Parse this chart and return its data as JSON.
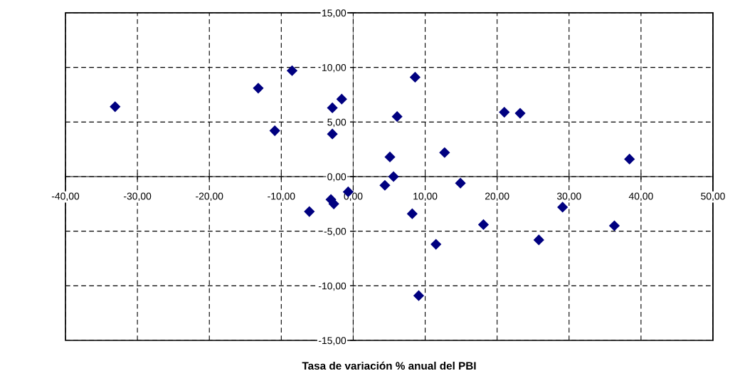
{
  "chart_data": {
    "type": "scatter",
    "xlabel": "Tasa de variación % anual del PBI",
    "x": [
      -33.1,
      -13.2,
      -8.5,
      -10.9,
      -2.9,
      -1.6,
      -2.9,
      6.1,
      8.6,
      5.1,
      5.6,
      4.4,
      -0.7,
      -6.1,
      -3.1,
      -2.7,
      12.7,
      14.9,
      8.2,
      11.5,
      9.1,
      18.1,
      21.0,
      23.2,
      25.8,
      29.1,
      36.3,
      38.4
    ],
    "series": [
      {
        "color": "#000080",
        "values": [
          6.4,
          8.1,
          9.7,
          4.2,
          6.3,
          7.1,
          3.9,
          5.5,
          9.1,
          1.8,
          0.0,
          -0.8,
          -1.4,
          -3.2,
          -2.1,
          -2.5,
          2.2,
          -0.6,
          -3.4,
          -6.2,
          -10.9,
          -4.4,
          5.9,
          5.8,
          -5.8,
          -2.8,
          -4.5,
          1.6
        ]
      }
    ],
    "xlim": [
      -40,
      50
    ],
    "ylim": [
      -15,
      15
    ],
    "xticks": [
      {
        "value": -40,
        "label": "-40,00"
      },
      {
        "value": -30,
        "label": "-30,00"
      },
      {
        "value": -20,
        "label": "-20,00"
      },
      {
        "value": -10,
        "label": "-10,00"
      },
      {
        "value": 0,
        "label": "0,00"
      },
      {
        "value": 10,
        "label": "10,00"
      },
      {
        "value": 20,
        "label": "20,00"
      },
      {
        "value": 30,
        "label": "30,00"
      },
      {
        "value": 40,
        "label": "40,00"
      },
      {
        "value": 50,
        "label": "50,00"
      }
    ],
    "yticks": [
      {
        "value": -15,
        "label": "-15,00"
      },
      {
        "value": -10,
        "label": "-10,00"
      },
      {
        "value": -5,
        "label": "-5,00"
      },
      {
        "value": 0,
        "label": "0,00"
      },
      {
        "value": 5,
        "label": "5,00"
      },
      {
        "value": 10,
        "label": "10,00"
      },
      {
        "value": 15,
        "label": "15,00"
      }
    ],
    "grid": true,
    "marker": "diamond"
  }
}
